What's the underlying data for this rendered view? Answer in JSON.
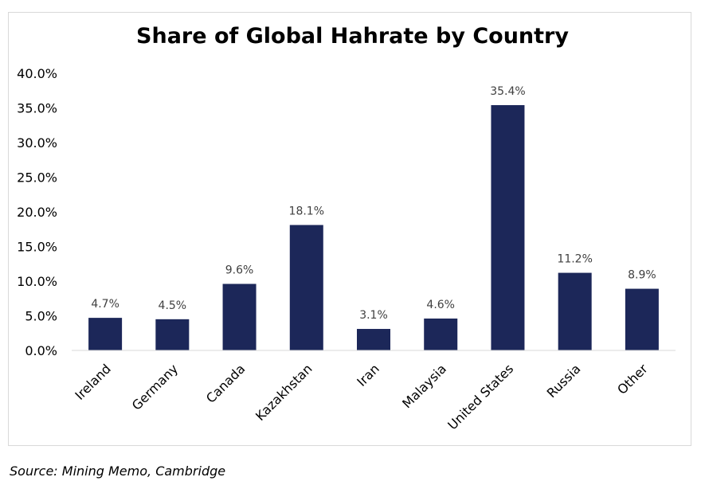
{
  "chart_data": {
    "type": "bar",
    "title": "Share of Global Hahrate by Country",
    "categories": [
      "Ireland",
      "Germany",
      "Canada",
      "Kazakhstan",
      "Iran",
      "Malaysia",
      "United States",
      "Russia",
      "Other"
    ],
    "values": [
      4.7,
      4.5,
      9.6,
      18.1,
      3.1,
      4.6,
      35.4,
      11.2,
      8.9
    ],
    "data_labels": [
      "4.7%",
      "4.5%",
      "9.6%",
      "18.1%",
      "3.1%",
      "4.6%",
      "35.4%",
      "11.2%",
      "8.9%"
    ],
    "y_ticks": [
      "0.0%",
      "5.0%",
      "10.0%",
      "15.0%",
      "20.0%",
      "25.0%",
      "30.0%",
      "35.0%",
      "40.0%"
    ],
    "ylim": [
      0,
      40
    ],
    "xlabel": "",
    "ylabel": "",
    "grid": false,
    "legend": "none",
    "bar_color": "#1c2759"
  },
  "source": "Source: Mining Memo, Cambridge"
}
